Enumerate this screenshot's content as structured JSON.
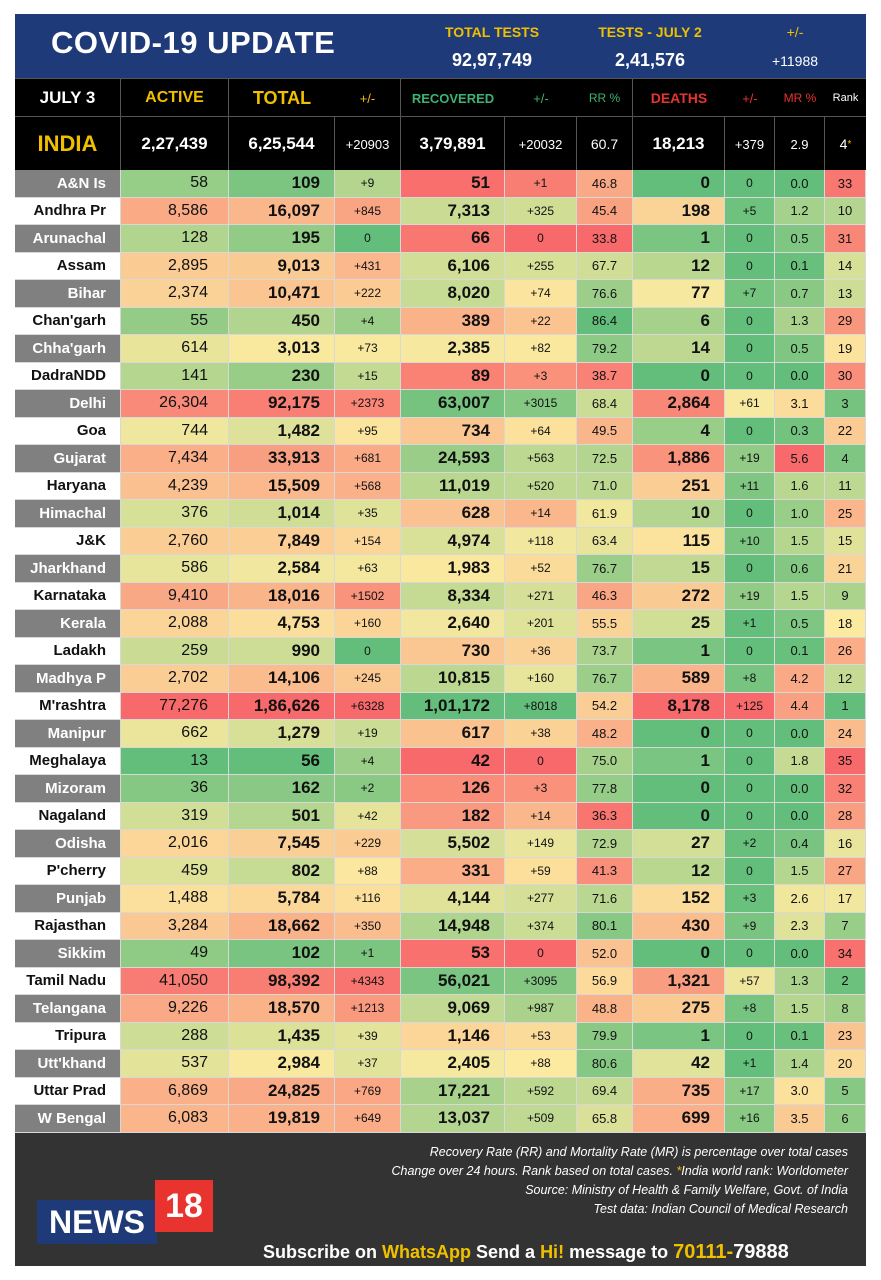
{
  "header": {
    "title": "COVID-19 UPDATE",
    "total_tests_label": "TOTAL TESTS",
    "total_tests_value": "92,97,749",
    "daily_tests_label": "TESTS - JULY 2",
    "daily_tests_value": "2,41,576",
    "change_label": "+/-",
    "change_value": "+11988"
  },
  "columns": {
    "date": "JULY 3",
    "active": "ACTIVE",
    "total": "TOTAL",
    "total_change": "+/-",
    "recovered": "RECOVERED",
    "recovered_change": "+/-",
    "rr": "RR %",
    "deaths": "DEATHS",
    "deaths_change": "+/-",
    "mr": "MR %",
    "rank": "Rank"
  },
  "india": {
    "name": "INDIA",
    "active": "2,27,439",
    "total": "6,25,544",
    "total_change": "+20903",
    "recovered": "3,79,891",
    "recovered_change": "+20032",
    "rr": "60.7",
    "deaths": "18,213",
    "deaths_change": "+379",
    "mr": "2.9",
    "rank": "4",
    "rank_mark": "*"
  },
  "states": [
    {
      "name": "A&N Is",
      "active": "58",
      "total": "109",
      "tc": "+9",
      "rec": "51",
      "rc": "+1",
      "rr": "46.8",
      "deaths": "0",
      "dc": "0",
      "mr": "0.0",
      "rank": "33"
    },
    {
      "name": "Andhra Pr",
      "active": "8,586",
      "total": "16,097",
      "tc": "+845",
      "rec": "7,313",
      "rc": "+325",
      "rr": "45.4",
      "deaths": "198",
      "dc": "+5",
      "mr": "1.2",
      "rank": "10"
    },
    {
      "name": "Arunachal",
      "active": "128",
      "total": "195",
      "tc": "0",
      "rec": "66",
      "rc": "0",
      "rr": "33.8",
      "deaths": "1",
      "dc": "0",
      "mr": "0.5",
      "rank": "31"
    },
    {
      "name": "Assam",
      "active": "2,895",
      "total": "9,013",
      "tc": "+431",
      "rec": "6,106",
      "rc": "+255",
      "rr": "67.7",
      "deaths": "12",
      "dc": "0",
      "mr": "0.1",
      "rank": "14"
    },
    {
      "name": "Bihar",
      "active": "2,374",
      "total": "10,471",
      "tc": "+222",
      "rec": "8,020",
      "rc": "+74",
      "rr": "76.6",
      "deaths": "77",
      "dc": "+7",
      "mr": "0.7",
      "rank": "13"
    },
    {
      "name": "Chan'garh",
      "active": "55",
      "total": "450",
      "tc": "+4",
      "rec": "389",
      "rc": "+22",
      "rr": "86.4",
      "deaths": "6",
      "dc": "0",
      "mr": "1.3",
      "rank": "29"
    },
    {
      "name": "Chha'garh",
      "active": "614",
      "total": "3,013",
      "tc": "+73",
      "rec": "2,385",
      "rc": "+82",
      "rr": "79.2",
      "deaths": "14",
      "dc": "0",
      "mr": "0.5",
      "rank": "19"
    },
    {
      "name": "DadraNDD",
      "active": "141",
      "total": "230",
      "tc": "+15",
      "rec": "89",
      "rc": "+3",
      "rr": "38.7",
      "deaths": "0",
      "dc": "0",
      "mr": "0.0",
      "rank": "30"
    },
    {
      "name": "Delhi",
      "active": "26,304",
      "total": "92,175",
      "tc": "+2373",
      "rec": "63,007",
      "rc": "+3015",
      "rr": "68.4",
      "deaths": "2,864",
      "dc": "+61",
      "mr": "3.1",
      "rank": "3"
    },
    {
      "name": "Goa",
      "active": "744",
      "total": "1,482",
      "tc": "+95",
      "rec": "734",
      "rc": "+64",
      "rr": "49.5",
      "deaths": "4",
      "dc": "0",
      "mr": "0.3",
      "rank": "22"
    },
    {
      "name": "Gujarat",
      "active": "7,434",
      "total": "33,913",
      "tc": "+681",
      "rec": "24,593",
      "rc": "+563",
      "rr": "72.5",
      "deaths": "1,886",
      "dc": "+19",
      "mr": "5.6",
      "rank": "4"
    },
    {
      "name": "Haryana",
      "active": "4,239",
      "total": "15,509",
      "tc": "+568",
      "rec": "11,019",
      "rc": "+520",
      "rr": "71.0",
      "deaths": "251",
      "dc": "+11",
      "mr": "1.6",
      "rank": "11"
    },
    {
      "name": "Himachal",
      "active": "376",
      "total": "1,014",
      "tc": "+35",
      "rec": "628",
      "rc": "+14",
      "rr": "61.9",
      "deaths": "10",
      "dc": "0",
      "mr": "1.0",
      "rank": "25"
    },
    {
      "name": "J&K",
      "active": "2,760",
      "total": "7,849",
      "tc": "+154",
      "rec": "4,974",
      "rc": "+118",
      "rr": "63.4",
      "deaths": "115",
      "dc": "+10",
      "mr": "1.5",
      "rank": "15"
    },
    {
      "name": "Jharkhand",
      "active": "586",
      "total": "2,584",
      "tc": "+63",
      "rec": "1,983",
      "rc": "+52",
      "rr": "76.7",
      "deaths": "15",
      "dc": "0",
      "mr": "0.6",
      "rank": "21"
    },
    {
      "name": "Karnataka",
      "active": "9,410",
      "total": "18,016",
      "tc": "+1502",
      "rec": "8,334",
      "rc": "+271",
      "rr": "46.3",
      "deaths": "272",
      "dc": "+19",
      "mr": "1.5",
      "rank": "9"
    },
    {
      "name": "Kerala",
      "active": "2,088",
      "total": "4,753",
      "tc": "+160",
      "rec": "2,640",
      "rc": "+201",
      "rr": "55.5",
      "deaths": "25",
      "dc": "+1",
      "mr": "0.5",
      "rank": "18"
    },
    {
      "name": "Ladakh",
      "active": "259",
      "total": "990",
      "tc": "0",
      "rec": "730",
      "rc": "+36",
      "rr": "73.7",
      "deaths": "1",
      "dc": "0",
      "mr": "0.1",
      "rank": "26"
    },
    {
      "name": "Madhya P",
      "active": "2,702",
      "total": "14,106",
      "tc": "+245",
      "rec": "10,815",
      "rc": "+160",
      "rr": "76.7",
      "deaths": "589",
      "dc": "+8",
      "mr": "4.2",
      "rank": "12"
    },
    {
      "name": "M'rashtra",
      "active": "77,276",
      "total": "1,86,626",
      "tc": "+6328",
      "rec": "1,01,172",
      "rc": "+8018",
      "rr": "54.2",
      "deaths": "8,178",
      "dc": "+125",
      "mr": "4.4",
      "rank": "1"
    },
    {
      "name": "Manipur",
      "active": "662",
      "total": "1,279",
      "tc": "+19",
      "rec": "617",
      "rc": "+38",
      "rr": "48.2",
      "deaths": "0",
      "dc": "0",
      "mr": "0.0",
      "rank": "24"
    },
    {
      "name": "Meghalaya",
      "active": "13",
      "total": "56",
      "tc": "+4",
      "rec": "42",
      "rc": "0",
      "rr": "75.0",
      "deaths": "1",
      "dc": "0",
      "mr": "1.8",
      "rank": "35"
    },
    {
      "name": "Mizoram",
      "active": "36",
      "total": "162",
      "tc": "+2",
      "rec": "126",
      "rc": "+3",
      "rr": "77.8",
      "deaths": "0",
      "dc": "0",
      "mr": "0.0",
      "rank": "32"
    },
    {
      "name": "Nagaland",
      "active": "319",
      "total": "501",
      "tc": "+42",
      "rec": "182",
      "rc": "+14",
      "rr": "36.3",
      "deaths": "0",
      "dc": "0",
      "mr": "0.0",
      "rank": "28"
    },
    {
      "name": "Odisha",
      "active": "2,016",
      "total": "7,545",
      "tc": "+229",
      "rec": "5,502",
      "rc": "+149",
      "rr": "72.9",
      "deaths": "27",
      "dc": "+2",
      "mr": "0.4",
      "rank": "16"
    },
    {
      "name": "P'cherry",
      "active": "459",
      "total": "802",
      "tc": "+88",
      "rec": "331",
      "rc": "+59",
      "rr": "41.3",
      "deaths": "12",
      "dc": "0",
      "mr": "1.5",
      "rank": "27"
    },
    {
      "name": "Punjab",
      "active": "1,488",
      "total": "5,784",
      "tc": "+116",
      "rec": "4,144",
      "rc": "+277",
      "rr": "71.6",
      "deaths": "152",
      "dc": "+3",
      "mr": "2.6",
      "rank": "17"
    },
    {
      "name": "Rajasthan",
      "active": "3,284",
      "total": "18,662",
      "tc": "+350",
      "rec": "14,948",
      "rc": "+374",
      "rr": "80.1",
      "deaths": "430",
      "dc": "+9",
      "mr": "2.3",
      "rank": "7"
    },
    {
      "name": "Sikkim",
      "active": "49",
      "total": "102",
      "tc": "+1",
      "rec": "53",
      "rc": "0",
      "rr": "52.0",
      "deaths": "0",
      "dc": "0",
      "mr": "0.0",
      "rank": "34"
    },
    {
      "name": "Tamil Nadu",
      "active": "41,050",
      "total": "98,392",
      "tc": "+4343",
      "rec": "56,021",
      "rc": "+3095",
      "rr": "56.9",
      "deaths": "1,321",
      "dc": "+57",
      "mr": "1.3",
      "rank": "2"
    },
    {
      "name": "Telangana",
      "active": "9,226",
      "total": "18,570",
      "tc": "+1213",
      "rec": "9,069",
      "rc": "+987",
      "rr": "48.8",
      "deaths": "275",
      "dc": "+8",
      "mr": "1.5",
      "rank": "8"
    },
    {
      "name": "Tripura",
      "active": "288",
      "total": "1,435",
      "tc": "+39",
      "rec": "1,146",
      "rc": "+53",
      "rr": "79.9",
      "deaths": "1",
      "dc": "0",
      "mr": "0.1",
      "rank": "23"
    },
    {
      "name": "Utt'khand",
      "active": "537",
      "total": "2,984",
      "tc": "+37",
      "rec": "2,405",
      "rc": "+88",
      "rr": "80.6",
      "deaths": "42",
      "dc": "+1",
      "mr": "1.4",
      "rank": "20"
    },
    {
      "name": "Uttar Prad",
      "active": "6,869",
      "total": "24,825",
      "tc": "+769",
      "rec": "17,221",
      "rc": "+592",
      "rr": "69.4",
      "deaths": "735",
      "dc": "+17",
      "mr": "3.0",
      "rank": "5"
    },
    {
      "name": "W Bengal",
      "active": "6,083",
      "total": "19,819",
      "tc": "+649",
      "rec": "13,037",
      "rc": "+509",
      "rr": "65.8",
      "deaths": "699",
      "dc": "+16",
      "mr": "3.5",
      "rank": "6"
    }
  ],
  "footer": {
    "note1": "Recovery Rate (RR) and Mortality Rate (MR) is percentage over total cases",
    "note2_a": "Change over 24 hours. Rank based on total cases. ",
    "note2_b": "India world rank: Worldometer",
    "note2_star": "*",
    "note3": "Source: Ministry of Health & Family Welfare, Govt. of India",
    "note4": "Test data: Indian Council of Medical Research",
    "logo_text": "NEWS",
    "logo_num": "18",
    "subscribe_a": "Subscribe on ",
    "subscribe_app": "WhatsApp",
    "subscribe_b": " Send a ",
    "subscribe_hi": "Hi!",
    "subscribe_c": " message to ",
    "subscribe_phone": "70111-",
    "subscribe_phone2": "79888"
  },
  "colors": {
    "header_bg": "#1f3a78",
    "accent_yellow": "#f0c000",
    "recovered_green": "#3cb371",
    "deaths_red": "#e8332f",
    "scale_green": "#63be7b",
    "scale_yellow": "#fbeaa0",
    "scale_red": "#f8696b"
  }
}
